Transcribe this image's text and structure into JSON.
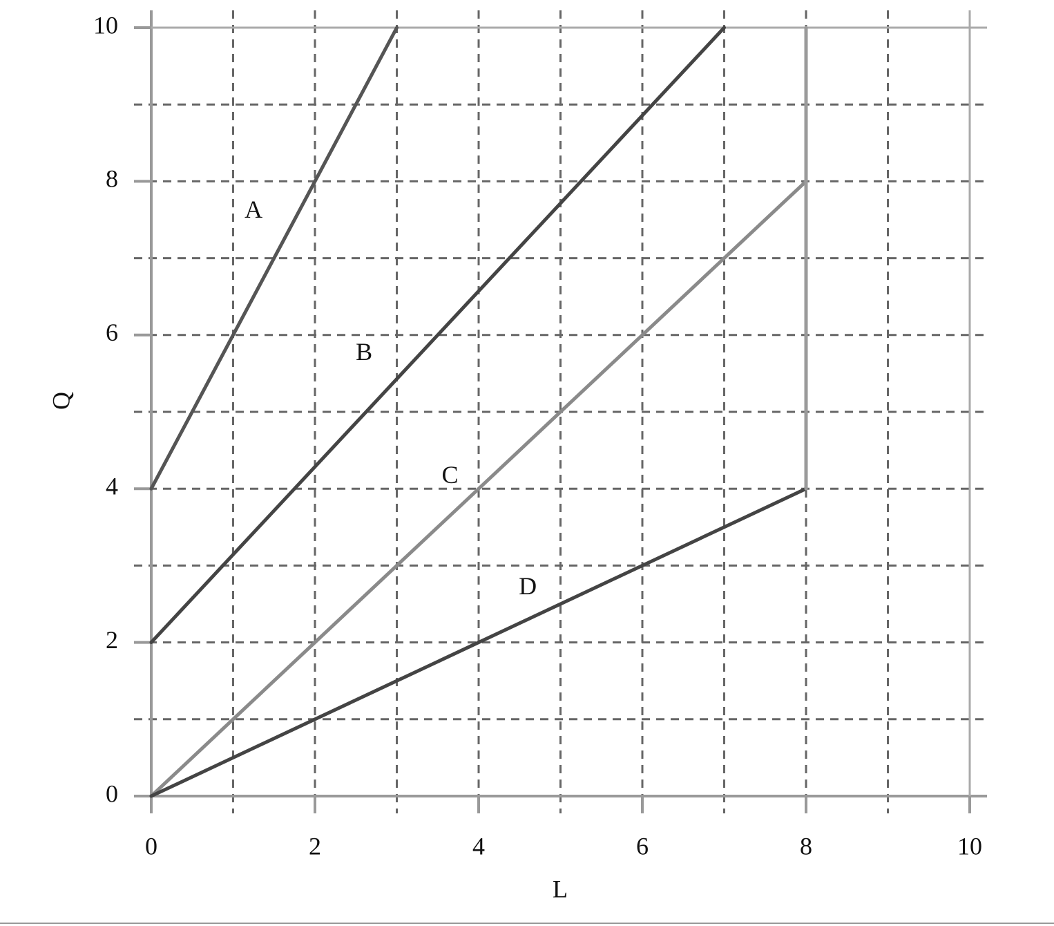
{
  "chart_data": {
    "type": "line",
    "xlabel": "L",
    "ylabel": "Q",
    "xlim": [
      0,
      10
    ],
    "ylim": [
      0,
      10
    ],
    "xticks": [
      0,
      2,
      4,
      6,
      8,
      10
    ],
    "yticks": [
      0,
      2,
      4,
      6,
      8,
      10
    ],
    "grid": true,
    "grid_step": 1,
    "series": [
      {
        "name": "A",
        "color": "#555555",
        "x": [
          0,
          3
        ],
        "values": [
          4,
          10
        ]
      },
      {
        "name": "B",
        "color": "#444444",
        "x": [
          0,
          7
        ],
        "values": [
          2,
          10
        ]
      },
      {
        "name": "C",
        "color": "#8a8a8a",
        "x": [
          0,
          8
        ],
        "values": [
          0,
          8
        ]
      },
      {
        "name": "D",
        "color": "#444444",
        "x": [
          0,
          8
        ],
        "values": [
          0,
          4
        ]
      },
      {
        "color": "#9a9a9a",
        "x": [
          8,
          8
        ],
        "values": [
          4,
          10
        ]
      }
    ]
  }
}
